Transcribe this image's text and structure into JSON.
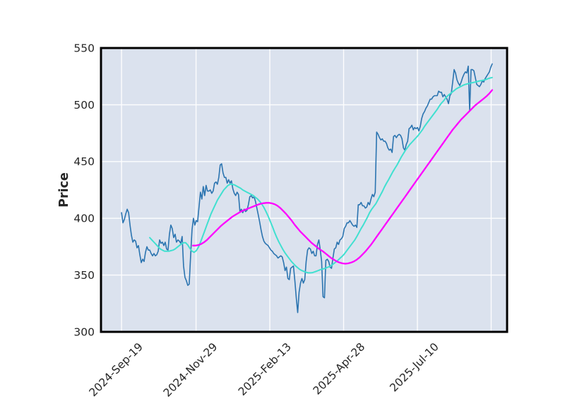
{
  "chart_data": {
    "type": "line",
    "title": "",
    "xlabel": "",
    "ylabel": "Price",
    "grid": true,
    "legend": "none",
    "ylim": [
      300,
      550
    ],
    "yticks": [
      300,
      350,
      400,
      450,
      500,
      550
    ],
    "x_unit": "trading days since 2024-Sep-19",
    "xlim_days": [
      -14.2,
      266.5
    ],
    "xticks": [
      {
        "day": 0,
        "label": "2024-Sep-19"
      },
      {
        "day": 51.5,
        "label": "2024-Nov-29"
      },
      {
        "day": 102.5,
        "label": "2025-Feb-13"
      },
      {
        "day": 153.5,
        "label": "2025-Apr-28"
      },
      {
        "day": 204.5,
        "label": "2025-Jul-10"
      },
      {
        "day": 255.5,
        "label": ""
      }
    ],
    "colors": {
      "figure_bg": "#ffffff",
      "plot_bg": "#dbe2ee",
      "grid": "#ffffff",
      "border": "#000000",
      "tick_text": "#262626",
      "price": "#2b74b0",
      "sma20": "#40e0d0",
      "sma50": "#ff00ff"
    },
    "series": [
      {
        "name": "price",
        "color": "#2b74b0",
        "width": 1.6,
        "start_day": 0,
        "end_day": 256.2,
        "values": [
          405,
          396,
          399,
          404,
          408,
          405,
          394,
          385,
          379,
          381,
          380,
          374,
          376,
          368,
          361,
          364,
          362,
          370,
          375,
          372,
          372,
          369,
          367,
          369,
          367,
          368,
          371,
          381,
          378,
          379,
          376,
          379,
          373,
          372,
          386,
          394,
          391,
          383,
          386,
          379,
          381,
          380,
          378,
          384,
          358,
          348,
          345,
          341,
          342,
          367,
          390,
          400,
          394,
          398,
          397,
          410,
          423,
          417,
          428,
          420,
          429,
          424,
          424,
          425,
          422,
          424,
          431,
          432,
          430,
          436,
          447,
          448,
          440,
          436,
          436,
          431,
          434,
          431,
          433,
          426,
          422,
          420,
          423,
          421,
          406,
          408,
          405,
          408,
          406,
          407,
          412,
          419,
          420,
          418,
          419,
          415,
          409,
          403,
          397,
          390,
          384,
          380,
          378,
          377,
          376,
          374,
          372,
          371,
          369,
          368,
          367,
          365,
          366,
          367,
          366,
          361,
          354,
          357,
          347,
          346,
          356,
          357,
          358,
          345,
          330,
          317,
          335,
          343,
          347,
          343,
          346,
          362,
          372,
          374,
          373,
          369,
          371,
          367,
          367,
          377,
          381,
          372,
          362,
          331,
          330,
          363,
          364,
          362,
          357,
          356,
          365,
          373,
          374,
          379,
          377,
          381,
          382,
          384,
          391,
          393,
          396,
          396,
          398,
          396,
          394,
          393,
          394,
          392,
          412,
          412,
          414,
          411,
          411,
          409,
          410,
          414,
          412,
          417,
          421,
          419,
          423,
          476,
          474,
          471,
          469,
          470,
          468,
          468,
          466,
          462,
          460,
          461,
          458,
          472,
          473,
          471,
          473,
          474,
          473,
          470,
          462,
          460,
          465,
          468,
          479,
          480,
          482,
          478,
          480,
          479,
          480,
          477,
          481,
          488,
          492,
          494,
          497,
          499,
          502,
          505,
          505,
          507,
          508,
          508,
          508,
          512,
          511,
          511,
          507,
          509,
          507,
          505,
          501,
          508,
          510,
          520,
          531,
          528,
          522,
          519,
          517,
          520,
          524,
          527,
          529,
          528,
          534,
          495,
          531,
          531,
          530,
          524,
          518,
          517,
          516,
          518,
          521,
          520,
          523,
          525,
          527,
          529,
          533,
          536
        ]
      },
      {
        "name": "sma-20",
        "color": "#40e0d0",
        "width": 2.0,
        "start_day": 19.5,
        "end_day": 256.2,
        "values": [
          383,
          381,
          379,
          377,
          375,
          373,
          372,
          371,
          371,
          371,
          371.5,
          372,
          373,
          374.5,
          376,
          377.5,
          378.5,
          378.5,
          376.5,
          373.5,
          371,
          370,
          371.5,
          374.5,
          379,
          384,
          389,
          394,
          399,
          404,
          408,
          412,
          416,
          419,
          422,
          425,
          427,
          429,
          430,
          430,
          429.5,
          428.5,
          427.5,
          426.5,
          425,
          424,
          423,
          422,
          421,
          420,
          418.5,
          417,
          415,
          412.5,
          409.5,
          406,
          402,
          397.5,
          393,
          388,
          383.5,
          379.5,
          376,
          372.5,
          369.5,
          367,
          364.5,
          362,
          360,
          358,
          356.5,
          355,
          354,
          353.2,
          352.5,
          352,
          352,
          352.2,
          352.8,
          353.5,
          354.2,
          355,
          355.5,
          356,
          356.8,
          357.5,
          358.5,
          360,
          361.5,
          363,
          364.8,
          366.5,
          368.5,
          371,
          373.5,
          376,
          378.5,
          381,
          384,
          387.5,
          391,
          394,
          397.5,
          401,
          405,
          408,
          410.5,
          413,
          416.5,
          420,
          423.5,
          427.5,
          431,
          434,
          437.5,
          441,
          444,
          447,
          450.5,
          454,
          457,
          460,
          462.5,
          465,
          467,
          469,
          471,
          473,
          475.5,
          478,
          481,
          483.5,
          486,
          488.5,
          491,
          493.5,
          496,
          499,
          501.5,
          503.5,
          506,
          508,
          509.5,
          511,
          512.5,
          514,
          515,
          516,
          517,
          517.8,
          518.3,
          518.8,
          519.2,
          519.6,
          520,
          520.5,
          521,
          521.3,
          521.7,
          522.2,
          523,
          523.6,
          524
        ]
      },
      {
        "name": "sma-50",
        "color": "#ff00ff",
        "width": 2.3,
        "start_day": 49.3,
        "end_day": 256.2,
        "values": [
          376,
          376,
          376.5,
          377.5,
          379,
          381,
          383.5,
          386,
          388.5,
          391,
          393.5,
          395.5,
          397.5,
          399.5,
          401.5,
          403,
          404.5,
          406,
          407,
          408,
          409,
          410,
          411,
          412,
          412.8,
          413.3,
          413.6,
          413.6,
          413.2,
          412.4,
          411,
          409,
          406.5,
          404,
          401,
          398,
          394.5,
          391.5,
          388.5,
          386,
          383.5,
          381,
          378.5,
          376.5,
          374.5,
          372.5,
          371,
          369,
          367,
          365,
          363.5,
          362,
          361,
          360.3,
          360,
          360.3,
          361,
          362,
          363.5,
          365.5,
          368,
          370.5,
          373.5,
          376.5,
          380,
          383.5,
          387,
          390.5,
          394,
          397.5,
          401,
          404.5,
          408,
          411.5,
          415,
          418.5,
          422,
          425.5,
          429,
          432.5,
          436,
          439.5,
          443,
          446.5,
          450,
          453.5,
          457,
          460.5,
          464,
          467.5,
          471,
          474.5,
          478,
          481,
          484,
          487,
          489.5,
          492,
          494.5,
          497,
          499.5,
          501.5,
          503.5,
          505.5,
          507.5,
          510,
          513
        ]
      }
    ]
  }
}
